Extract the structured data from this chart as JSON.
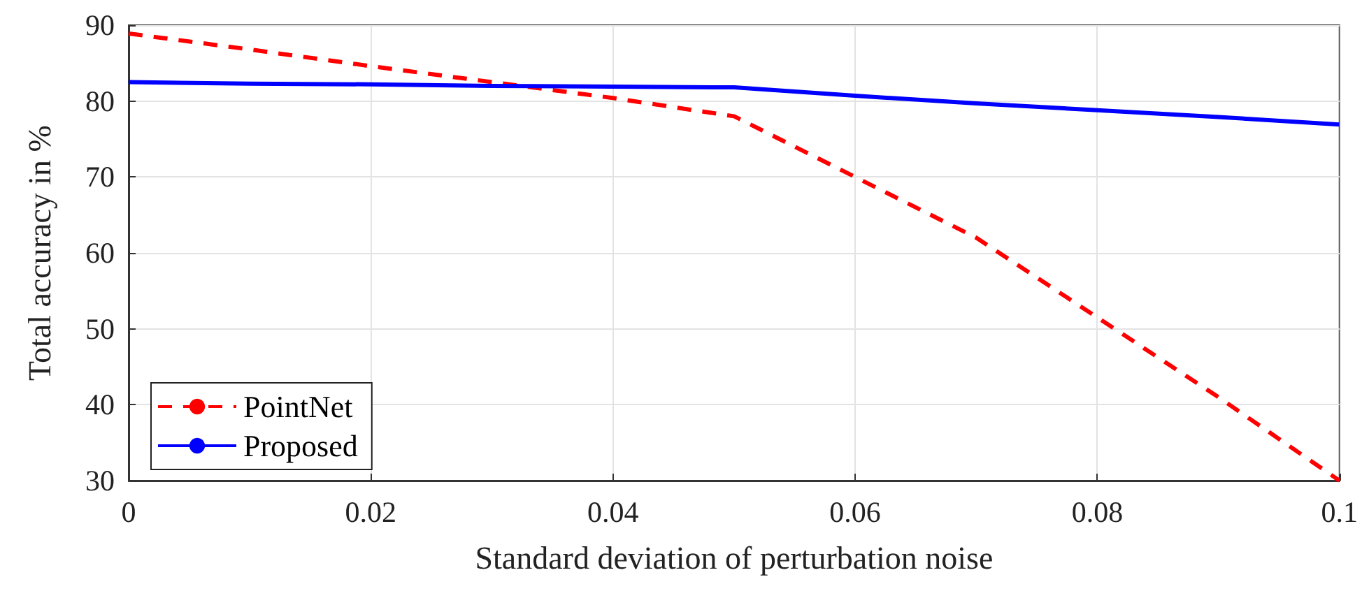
{
  "chart_data": {
    "type": "line",
    "xlabel": "Standard deviation of perturbation noise",
    "ylabel": "Total accuracy in %",
    "x": [
      0,
      0.01,
      0.02,
      0.03,
      0.04,
      0.05,
      0.06,
      0.07,
      0.08,
      0.09,
      0.1
    ],
    "series": [
      {
        "name": "PointNet",
        "color": "#ff0000",
        "line_style": "dashed",
        "values": [
          88.9,
          86.8,
          84.6,
          82.5,
          80.4,
          78,
          70,
          62,
          51.5,
          41,
          30
        ]
      },
      {
        "name": "Proposed",
        "color": "#0000ff",
        "line_style": "solid",
        "values": [
          82.5,
          82.3,
          82.2,
          82.0,
          81.9,
          81.8,
          80.7,
          79.7,
          78.8,
          77.9,
          76.9
        ]
      }
    ],
    "xlim": [
      0,
      0.1
    ],
    "xticks": [
      0,
      0.02,
      0.04,
      0.06,
      0.08,
      0.1
    ],
    "ylim": [
      30,
      90
    ],
    "yticks": [
      30,
      40,
      50,
      60,
      70,
      80,
      90
    ],
    "grid": true,
    "legend": "bottom left",
    "marker": "none"
  }
}
